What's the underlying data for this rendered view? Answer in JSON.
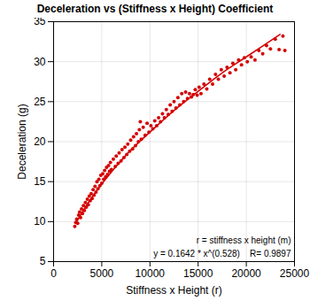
{
  "chart_data": {
    "type": "scatter",
    "title": "Deceleration vs (Stiffness x Height) Coefficient",
    "x_label": "Stiffness x Height (r)",
    "y_label": "Deceleration (g)",
    "annotations": [
      "r = stiffness x height (m)",
      "y = 0.1642 * x^(0.528)    R= 0.9897"
    ],
    "xlim": [
      0,
      25000
    ],
    "xticks": [
      0,
      5000,
      10000,
      15000,
      20000,
      25000
    ],
    "ylim": [
      5,
      35
    ],
    "yticks": [
      5,
      10,
      15,
      20,
      25,
      30,
      35
    ],
    "grid": true,
    "series": [
      {
        "type": "scatter",
        "marker": "circle",
        "color": "#d40000",
        "x": [
          2200,
          2300,
          2400,
          2500,
          2600,
          2700,
          2800,
          2900,
          3000,
          3100,
          3200,
          3300,
          3400,
          3500,
          3600,
          3700,
          3800,
          3900,
          4000,
          4100,
          4200,
          4300,
          4400,
          4500,
          4600,
          4700,
          4800,
          4900,
          5000,
          5100,
          5200,
          5300,
          5400,
          5500,
          5600,
          5700,
          5800,
          5900,
          6000,
          6200,
          6400,
          6500,
          6700,
          6800,
          7000,
          7100,
          7300,
          7400,
          7600,
          7700,
          7900,
          8000,
          8200,
          8300,
          8500,
          8600,
          8800,
          8900,
          9000,
          9100,
          9300,
          9500,
          9700,
          9900,
          10100,
          10300,
          10500,
          10700,
          10900,
          11100,
          11300,
          11500,
          11700,
          11900,
          12100,
          12300,
          12500,
          12700,
          12900,
          13100,
          13300,
          13500,
          13700,
          13900,
          14100,
          14300,
          14500,
          14700,
          14900,
          15100,
          15300,
          15600,
          15900,
          16200,
          16500,
          16800,
          17100,
          17400,
          17700,
          18000,
          18300,
          18600,
          18900,
          19200,
          19500,
          19800,
          20100,
          20500,
          20900,
          21300,
          21700,
          22100,
          22500,
          23000,
          23400,
          23800,
          24000
        ],
        "values": [
          9.4,
          9.9,
          10.3,
          9.8,
          10.8,
          11.2,
          10.5,
          11.6,
          11.0,
          12.0,
          11.4,
          12.4,
          11.8,
          12.8,
          12.1,
          13.2,
          12.6,
          13.5,
          12.9,
          14.0,
          13.3,
          14.4,
          13.7,
          15.0,
          14.1,
          15.3,
          14.5,
          15.8,
          14.8,
          16.0,
          15.3,
          16.4,
          15.6,
          16.8,
          15.9,
          17.0,
          16.3,
          17.4,
          16.5,
          17.8,
          16.9,
          18.2,
          17.3,
          18.6,
          17.6,
          19.0,
          18.0,
          19.3,
          18.4,
          19.7,
          18.8,
          20.2,
          19.1,
          20.6,
          19.5,
          21.0,
          20.0,
          21.5,
          22.5,
          20.3,
          21.8,
          20.8,
          22.3,
          21.2,
          22.0,
          21.6,
          22.6,
          22.0,
          23.0,
          22.5,
          23.5,
          23.0,
          24.0,
          23.4,
          24.6,
          23.8,
          25.0,
          24.2,
          25.5,
          24.6,
          26.0,
          25.0,
          26.2,
          25.4,
          26.0,
          25.6,
          25.9,
          26.5,
          25.8,
          26.8,
          26.0,
          27.2,
          26.6,
          27.8,
          27.2,
          28.4,
          27.8,
          29.0,
          28.2,
          29.3,
          28.6,
          29.8,
          29.0,
          30.2,
          29.6,
          30.5,
          30.0,
          30.6,
          30.2,
          31.4,
          31.0,
          32.0,
          31.6,
          32.8,
          31.5,
          33.2,
          31.4
        ]
      },
      {
        "type": "line",
        "line_style": "solid",
        "color": "#d40000",
        "x": [
          2300,
          3500,
          5000,
          7500,
          10000,
          12500,
          15000,
          17500,
          20000,
          23500
        ],
        "values": [
          9.8,
          12.2,
          14.7,
          18.3,
          21.2,
          23.9,
          26.3,
          28.6,
          30.6,
          33.4
        ]
      }
    ]
  }
}
